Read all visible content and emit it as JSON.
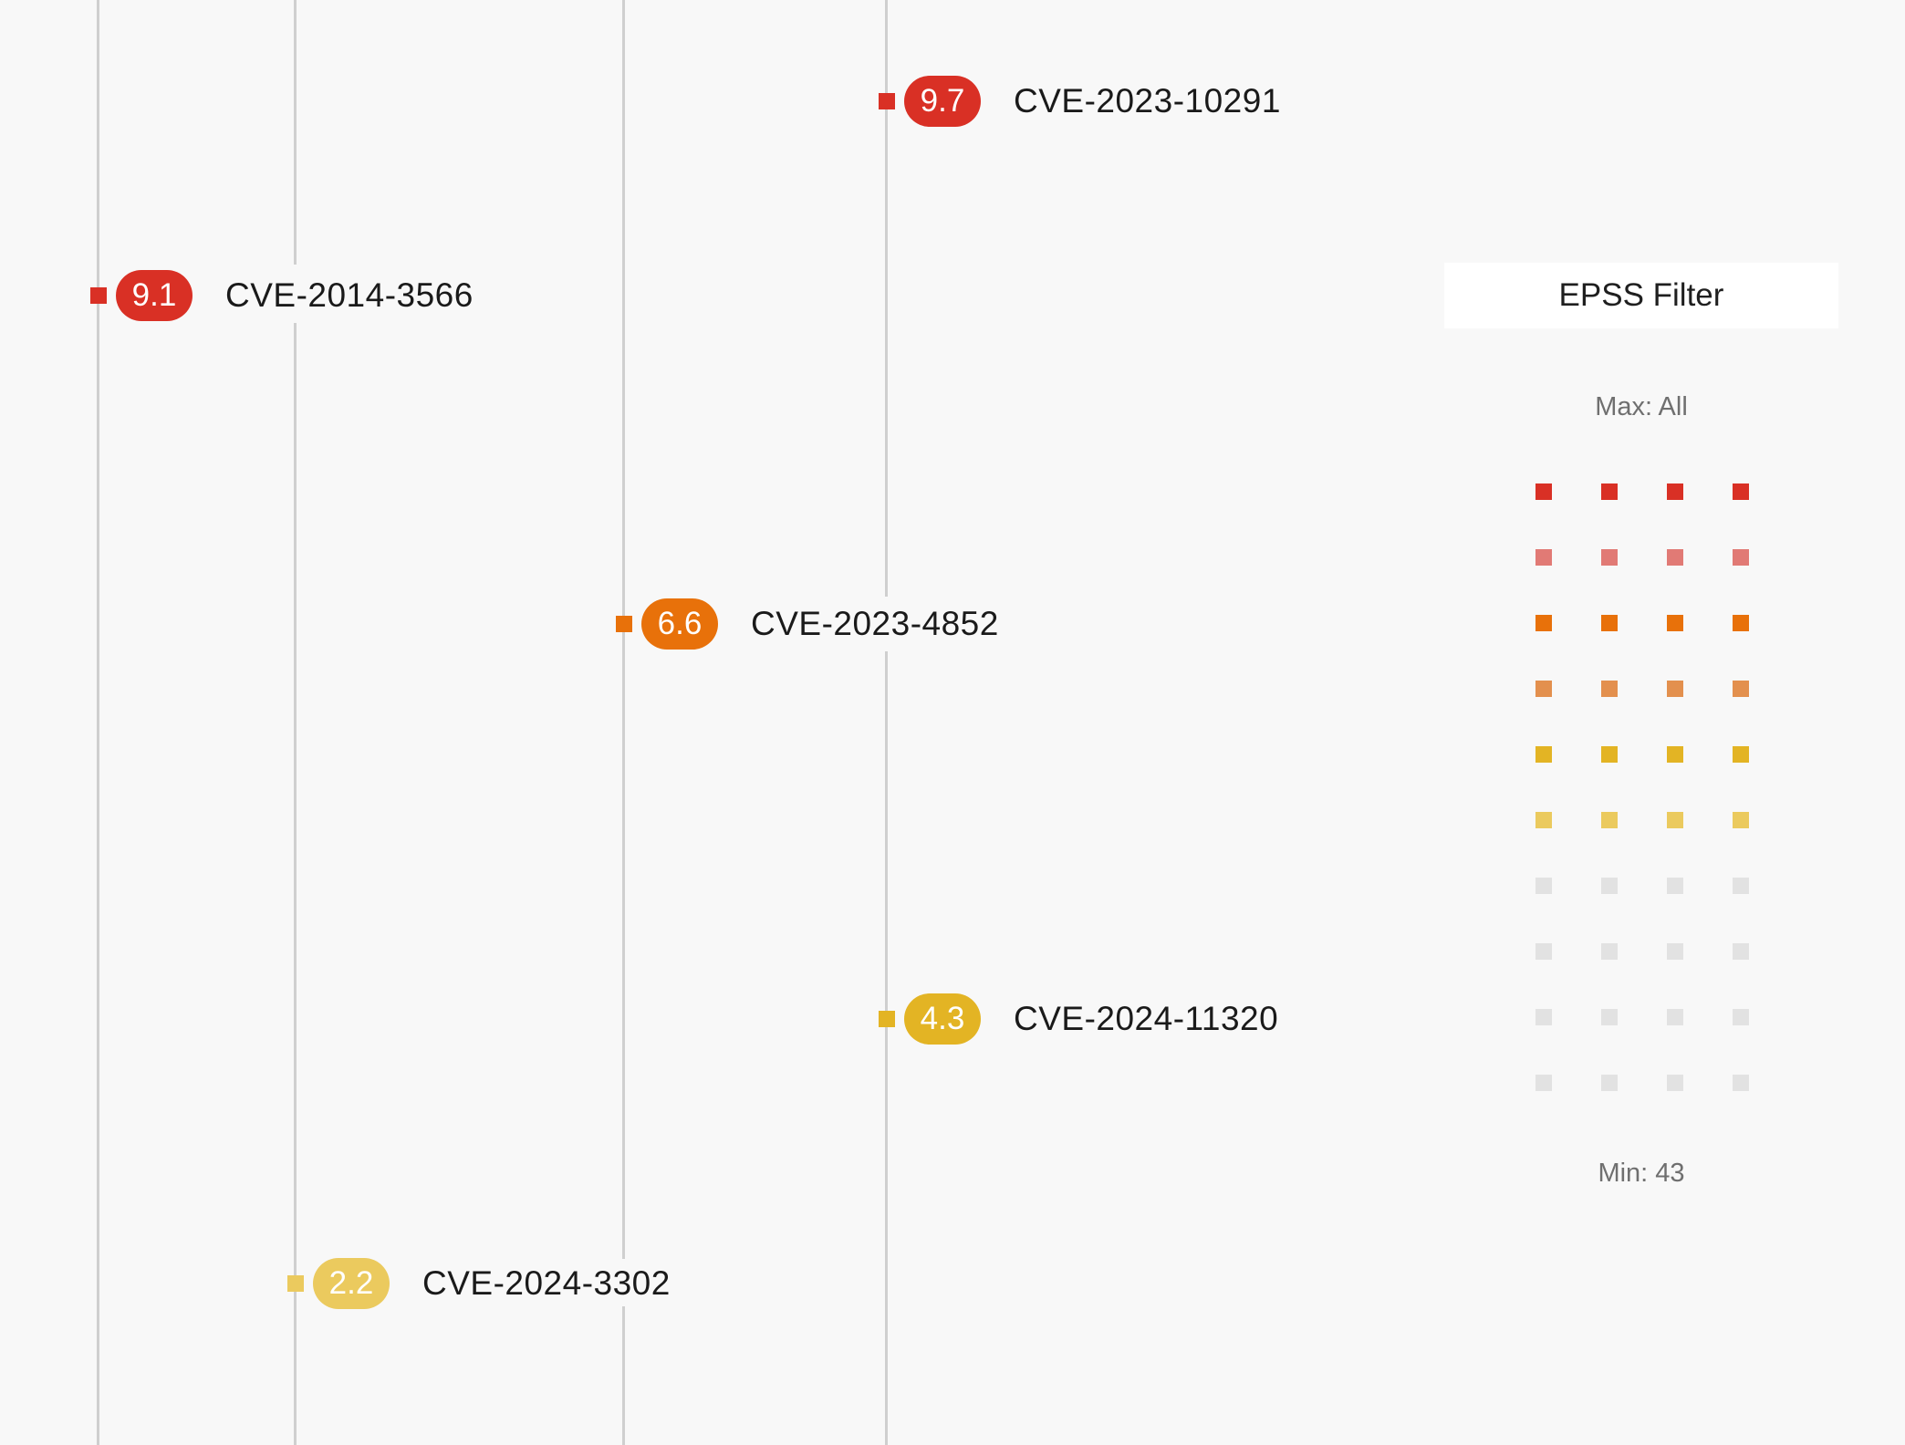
{
  "colors": {
    "critical": "#d93025",
    "critical_light": "#e17a75",
    "high": "#e8710a",
    "high_light": "#e3904e",
    "medium": "#e3b424",
    "medium_light": "#ebca5e",
    "none": "#e2e2e2",
    "lane": "#cfcfcf",
    "background": "#f8f8f8"
  },
  "cves": [
    {
      "id": "CVE-2023-10291",
      "score": "9.7",
      "severity": "critical"
    },
    {
      "id": "CVE-2014-3566",
      "score": "9.1",
      "severity": "critical"
    },
    {
      "id": "CVE-2023-4852",
      "score": "6.6",
      "severity": "high"
    },
    {
      "id": "CVE-2024-11320",
      "score": "4.3",
      "severity": "medium"
    },
    {
      "id": "CVE-2024-3302",
      "score": "2.2",
      "severity": "medium_light"
    }
  ],
  "epss_filter": {
    "title": "EPSS Filter",
    "max_label": "Max: All",
    "min_label": "Min: 43",
    "grid_rows": [
      "critical",
      "critical_light",
      "high",
      "high_light",
      "medium",
      "medium_light",
      "none",
      "none",
      "none",
      "none"
    ],
    "grid_columns": 4
  }
}
